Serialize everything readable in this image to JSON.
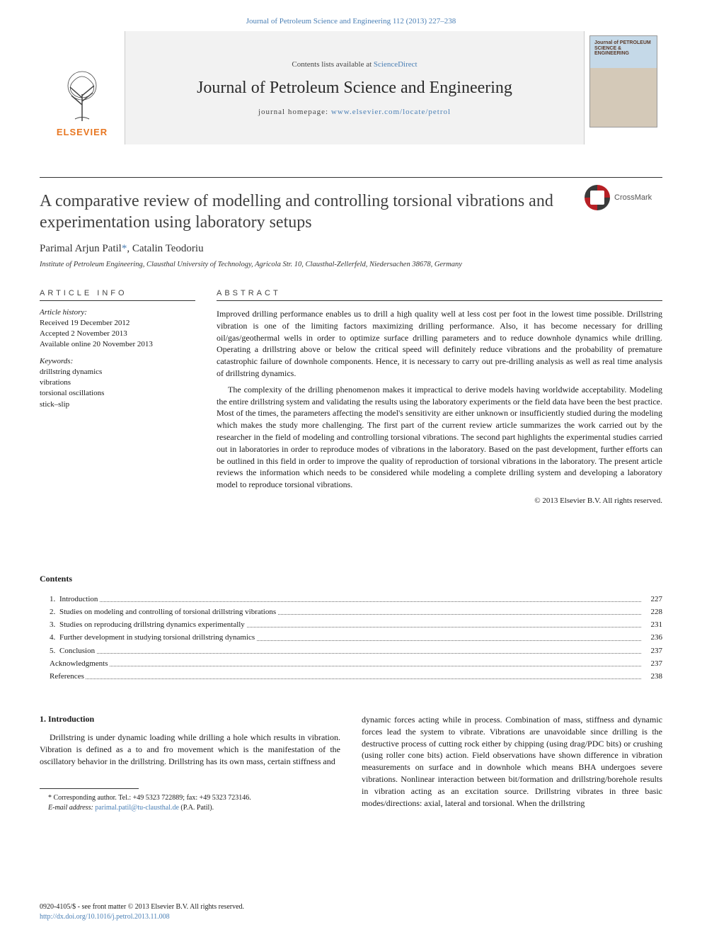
{
  "top_citation": {
    "journal_link": "Journal of Petroleum Science and Engineering",
    "volume_pages": " 112 (2013) 227–238"
  },
  "header": {
    "elsevier": "ELSEVIER",
    "elsevier_color": "#e87722",
    "contents_prefix": "Contents lists available at ",
    "contents_link": "ScienceDirect",
    "journal_name": "Journal of Petroleum Science and Engineering",
    "homepage_prefix": "journal homepage: ",
    "homepage_link": "www.elsevier.com/locate/petrol",
    "cover_title": "Journal of PETROLEUM SCIENCE & ENGINEERING",
    "bg_color": "#f2f2f2"
  },
  "crossmark": "CrossMark",
  "title": "A comparative review of modelling and controlling torsional vibrations and experimentation using laboratory setups",
  "authors": {
    "a1": "Parimal Arjun Patil",
    "corr": "*",
    "a2": ", Catalin Teodoriu"
  },
  "affiliation": "Institute of Petroleum Engineering, Clausthal University of Technology, Agricola Str. 10, Clausthal-Zellerfeld, Niedersachen 38678, Germany",
  "article_info": {
    "heading": "ARTICLE INFO",
    "history_label": "Article history:",
    "history": "Received 19 December 2012\nAccepted 2 November 2013\nAvailable online 20 November 2013",
    "keywords_label": "Keywords:",
    "keywords": [
      "drillstring dynamics",
      "vibrations",
      "torsional oscillations",
      "stick–slip"
    ]
  },
  "abstract": {
    "heading": "ABSTRACT",
    "p1": "Improved drilling performance enables us to drill a high quality well at less cost per foot in the lowest time possible. Drillstring vibration is one of the limiting factors maximizing drilling performance. Also, it has become necessary for drilling oil/gas/geothermal wells in order to optimize surface drilling parameters and to reduce downhole dynamics while drilling. Operating a drillstring above or below the critical speed will definitely reduce vibrations and the probability of premature catastrophic failure of downhole components. Hence, it is necessary to carry out pre-drilling analysis as well as real time analysis of drillstring dynamics.",
    "p2": "The complexity of the drilling phenomenon makes it impractical to derive models having worldwide acceptability. Modeling the entire drillstring system and validating the results using the laboratory experiments or the field data have been the best practice. Most of the times, the parameters affecting the model's sensitivity are either unknown or insufficiently studied during the modeling which makes the study more challenging. The first part of the current review article summarizes the work carried out by the researcher in the field of modeling and controlling torsional vibrations. The second part highlights the experimental studies carried out in laboratories in order to reproduce modes of vibrations in the laboratory. Based on the past development, further efforts can be outlined in this field in order to improve the quality of reproduction of torsional vibrations in the laboratory. The present article reviews the information which needs to be considered while modeling a complete drilling system and developing a laboratory model to reproduce torsional vibrations.",
    "copyright": "© 2013 Elsevier B.V. All rights reserved."
  },
  "contents": {
    "heading": "Contents",
    "items": [
      {
        "num": "1.",
        "title": "Introduction",
        "page": "227"
      },
      {
        "num": "2.",
        "title": "Studies on modeling and controlling of torsional drillstring vibrations",
        "page": "228"
      },
      {
        "num": "3.",
        "title": "Studies on reproducing drillstring dynamics experimentally",
        "page": "231"
      },
      {
        "num": "4.",
        "title": "Further development in studying torsional drillstring dynamics",
        "page": "236"
      },
      {
        "num": "5.",
        "title": "Conclusion",
        "page": "237"
      },
      {
        "num": "",
        "title": "Acknowledgments",
        "page": "237"
      },
      {
        "num": "",
        "title": "References",
        "page": "238"
      }
    ]
  },
  "body": {
    "section_heading": "1. Introduction",
    "left_p": "Drillstring is under dynamic loading while drilling a hole which results in vibration. Vibration is defined as a to and fro movement which is the manifestation of the oscillatory behavior in the drillstring. Drillstring has its own mass, certain stiffness and",
    "right_p": "dynamic forces acting while in process. Combination of mass, stiffness and dynamic forces lead the system to vibrate. Vibrations are unavoidable since drilling is the destructive process of cutting rock either by chipping (using drag/PDC bits) or crushing (using roller cone bits) action. Field observations have shown difference in vibration measurements on surface and in downhole which means BHA undergoes severe vibrations. Nonlinear interaction between bit/formation and drillstring/borehole results in vibration acting as an excitation source. Drillstring vibrates in three basic modes/directions: axial, lateral and torsional. When the drillstring"
  },
  "footnote": {
    "corr_text": "* Corresponding author. Tel.: +49 5323 722889; fax: +49 5323 723146.",
    "email_label": "E-mail address: ",
    "email": "parimal.patil@tu-clausthal.de",
    "email_suffix": " (P.A. Patil)."
  },
  "footer": {
    "line1": "0920-4105/$ - see front matter © 2013 Elsevier B.V. All rights reserved.",
    "doi": "http://dx.doi.org/10.1016/j.petrol.2013.11.008"
  },
  "colors": {
    "link": "#4a7fb5",
    "text": "#1a1a1a",
    "heading": "#404040"
  }
}
